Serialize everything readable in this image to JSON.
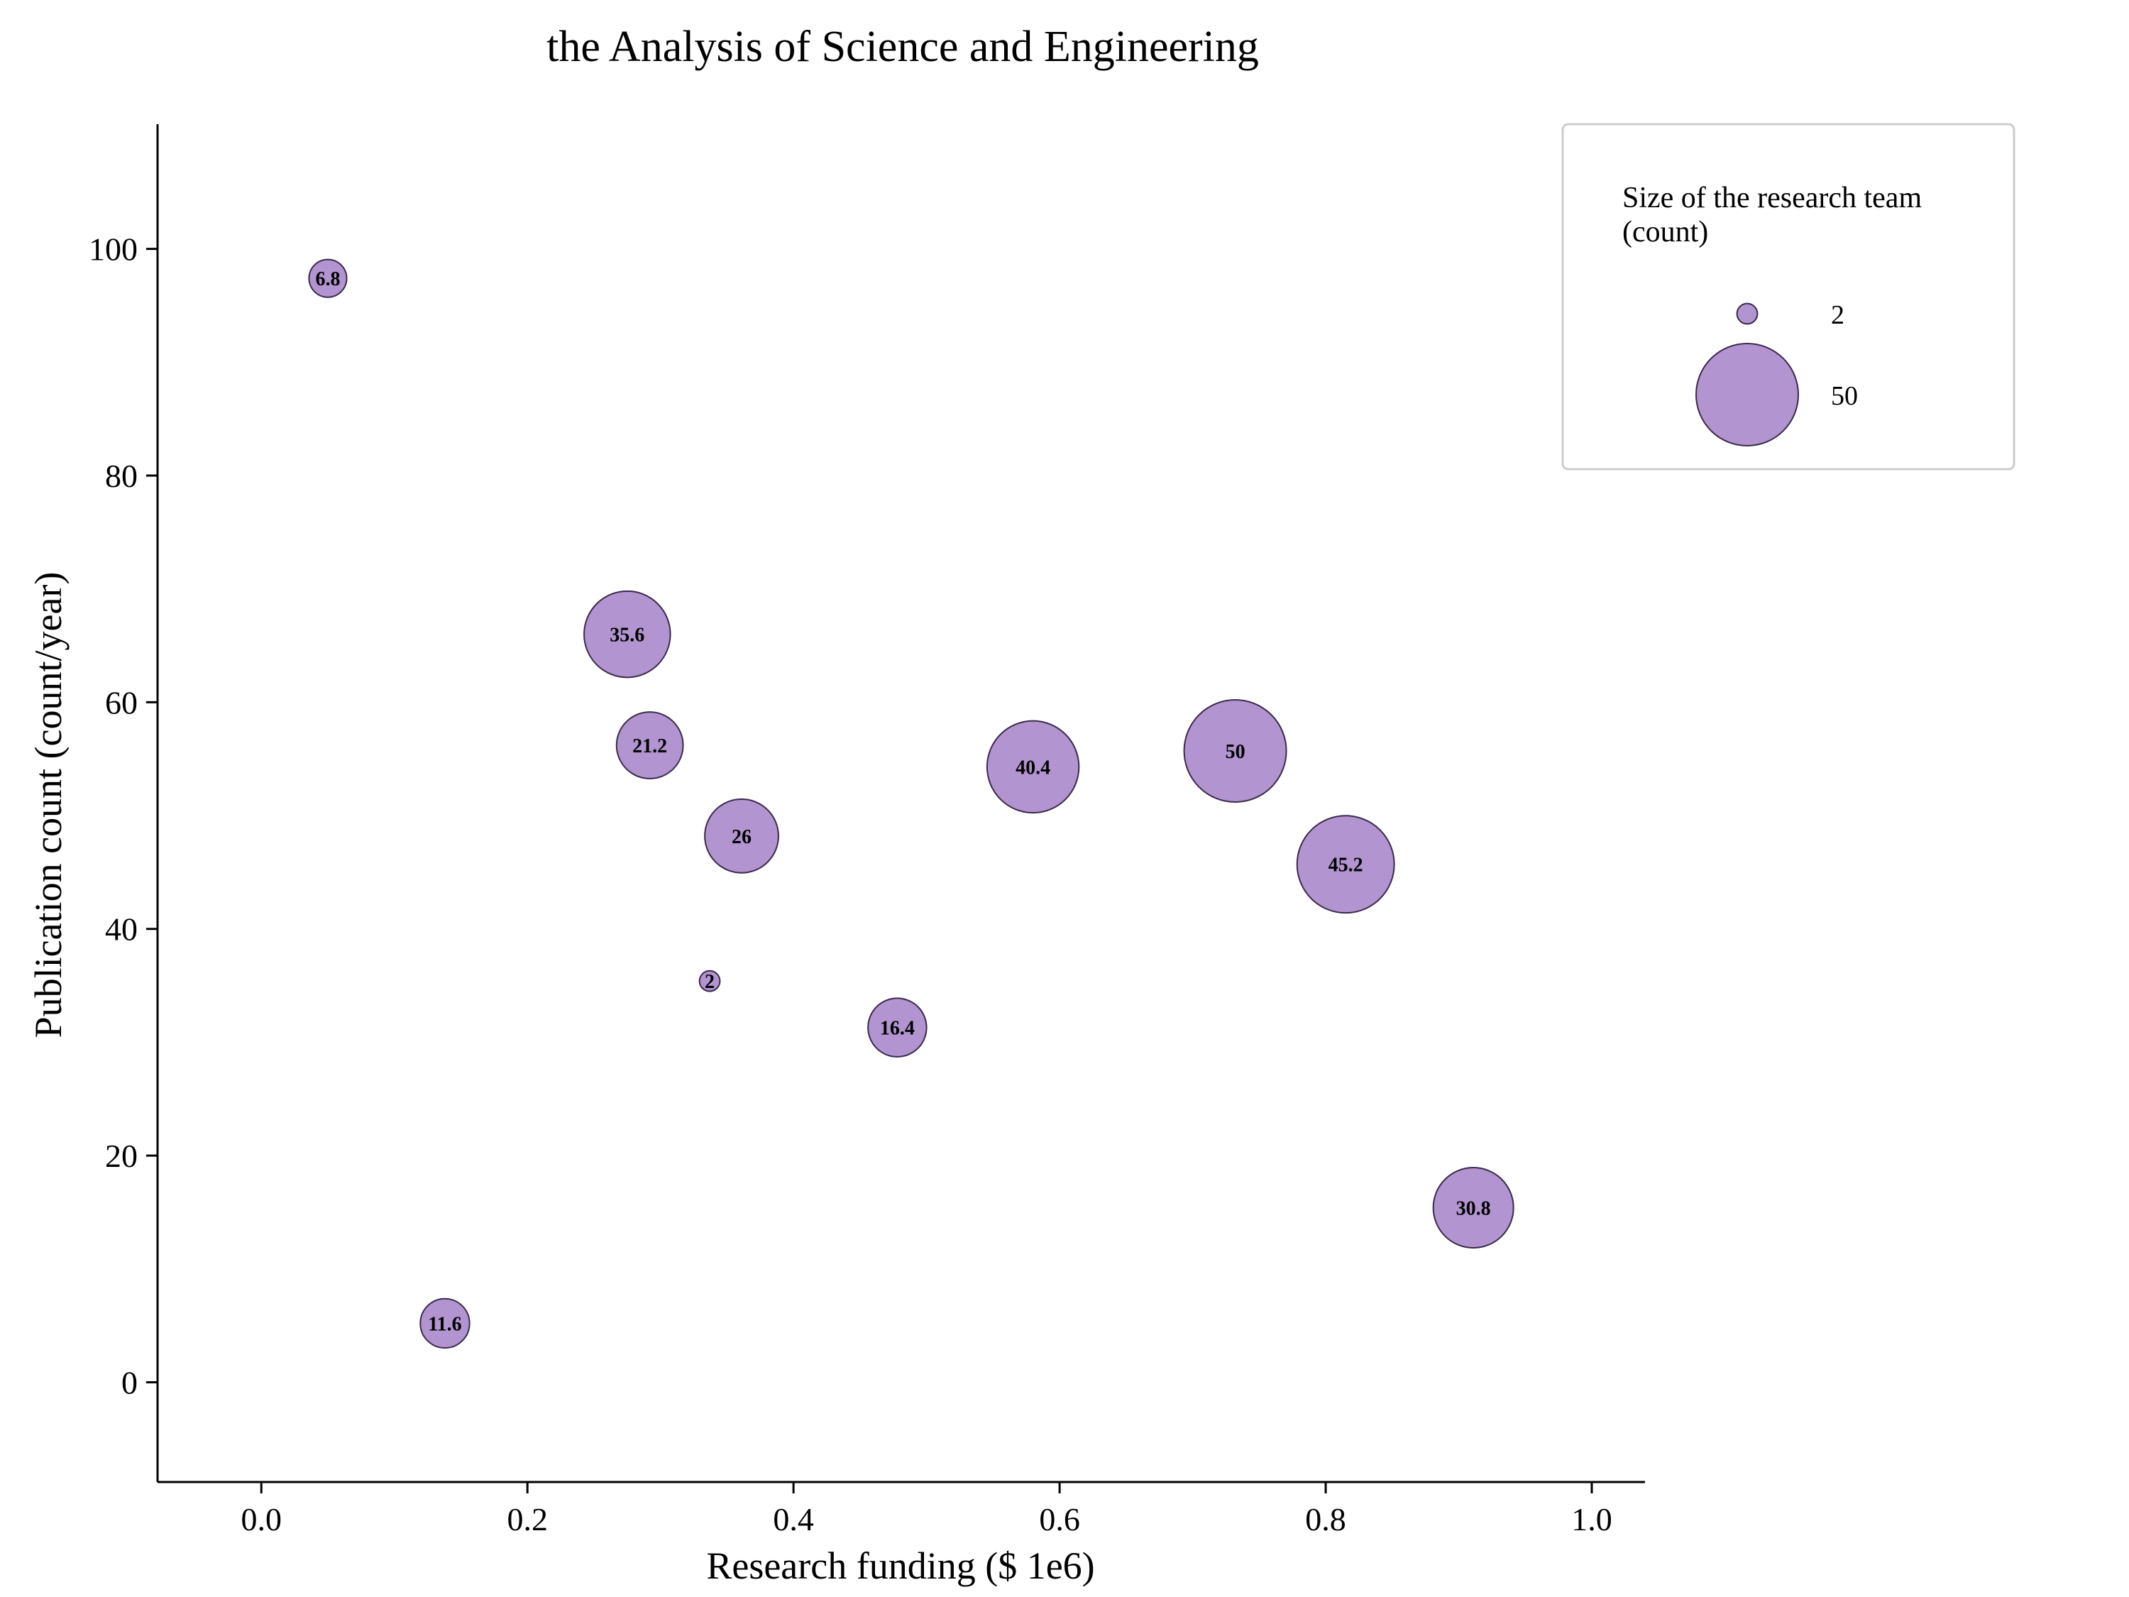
{
  "chart_data": {
    "type": "scatter",
    "title": "the Analysis of Science and Engineering",
    "xlabel": "Research funding ($ 1e6)",
    "ylabel": "Publication count (count/year)",
    "xlim": [
      -0.078,
      1.04
    ],
    "ylim": [
      -8.8,
      111
    ],
    "xticks": [
      0.0,
      0.2,
      0.4,
      0.6,
      0.8,
      1.0
    ],
    "xtick_labels": [
      "0.0",
      "0.2",
      "0.4",
      "0.6",
      "0.8",
      "1.0"
    ],
    "yticks": [
      0,
      20,
      40,
      60,
      80,
      100
    ],
    "ytick_labels": [
      "0",
      "20",
      "40",
      "60",
      "80",
      "100"
    ],
    "grid": false,
    "legend": {
      "title_lines": [
        "Size of the research team",
        "(count)"
      ],
      "placement": "top-right",
      "entries": [
        {
          "label": "2",
          "size": 2
        },
        {
          "label": "50",
          "size": 50
        }
      ]
    },
    "colors": {
      "bubble_fill": "#b294d0",
      "bubble_edge": "#3a2a4a"
    },
    "points": [
      {
        "x": 0.05,
        "y": 97.4,
        "size": 6.8,
        "label": "6.8"
      },
      {
        "x": 0.138,
        "y": 5.2,
        "size": 11.6,
        "label": "11.6"
      },
      {
        "x": 0.275,
        "y": 66.0,
        "size": 35.6,
        "label": "35.6"
      },
      {
        "x": 0.292,
        "y": 56.2,
        "size": 21.2,
        "label": "21.2"
      },
      {
        "x": 0.337,
        "y": 35.4,
        "size": 2,
        "label": "2"
      },
      {
        "x": 0.361,
        "y": 48.2,
        "size": 26,
        "label": "26"
      },
      {
        "x": 0.478,
        "y": 31.3,
        "size": 16.4,
        "label": "16.4"
      },
      {
        "x": 0.58,
        "y": 54.3,
        "size": 40.4,
        "label": "40.4"
      },
      {
        "x": 0.732,
        "y": 55.7,
        "size": 50,
        "label": "50"
      },
      {
        "x": 0.815,
        "y": 45.7,
        "size": 45.2,
        "label": "45.2"
      },
      {
        "x": 0.911,
        "y": 15.4,
        "size": 30.8,
        "label": "30.8"
      }
    ]
  }
}
